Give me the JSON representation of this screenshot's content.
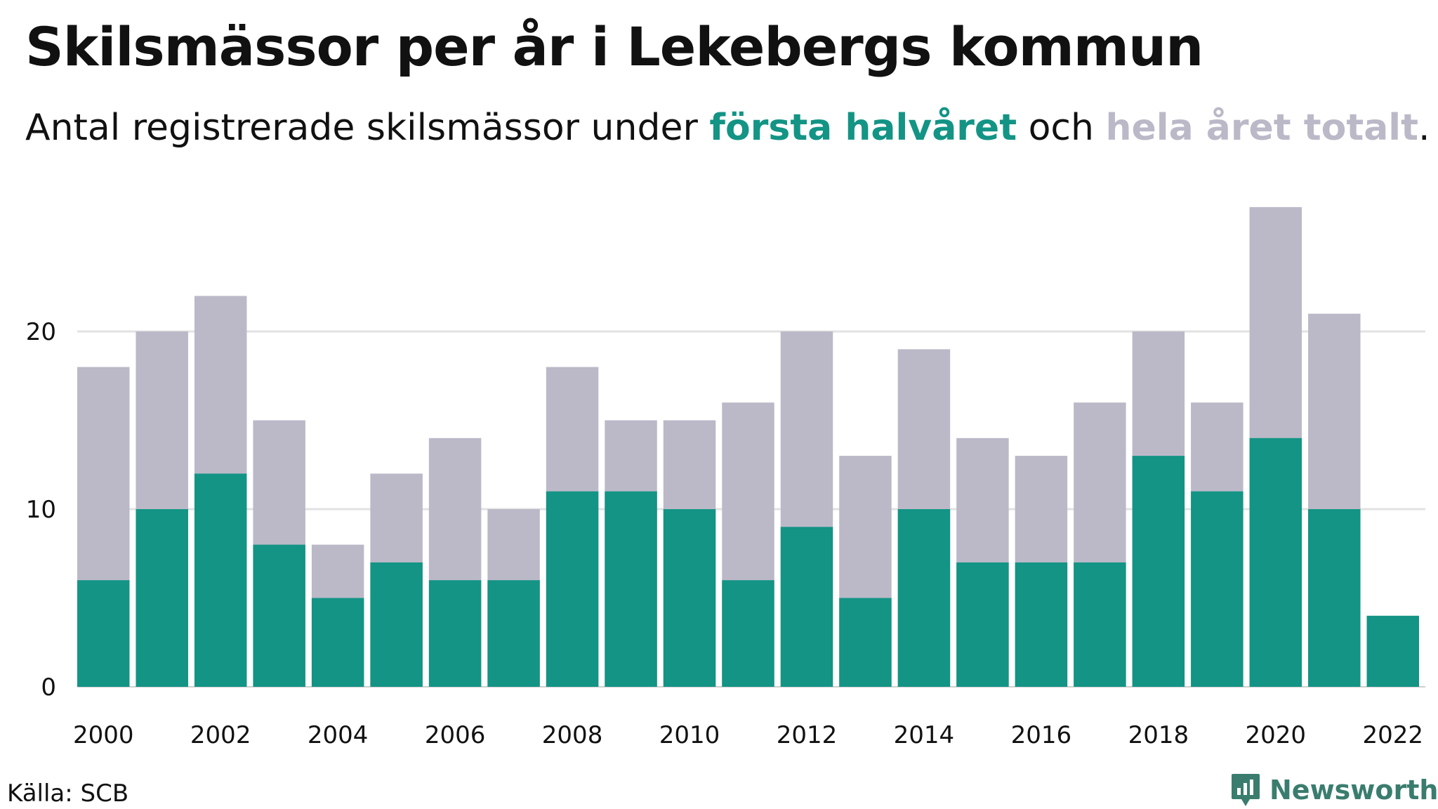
{
  "title": "Skilsmässor per år i Lekebergs kommun",
  "subtitle": {
    "part1": "Antal registrerade skilsmässor under ",
    "highlight_first": "första halvåret",
    "part2": " och ",
    "highlight_total": "hela året totalt",
    "part3": "."
  },
  "source": "Källa: SCB",
  "brand": "Newsworthy",
  "colors": {
    "first_half": "#139485",
    "full_year": "#bbb9c8",
    "grid": "#e2e2e2",
    "brand": "#3a7d6e"
  },
  "chart_data": {
    "type": "bar",
    "categories": [
      "2000",
      "2001",
      "2002",
      "2003",
      "2004",
      "2005",
      "2006",
      "2007",
      "2008",
      "2009",
      "2010",
      "2011",
      "2012",
      "2013",
      "2014",
      "2015",
      "2016",
      "2017",
      "2018",
      "2019",
      "2020",
      "2021",
      "2022"
    ],
    "series": [
      {
        "name": "hela året totalt",
        "values": [
          18,
          20,
          22,
          15,
          8,
          12,
          14,
          10,
          18,
          15,
          15,
          16,
          20,
          13,
          19,
          14,
          13,
          16,
          20,
          16,
          27,
          21,
          null
        ]
      },
      {
        "name": "första halvåret",
        "values": [
          6,
          10,
          12,
          8,
          5,
          7,
          6,
          6,
          11,
          11,
          10,
          6,
          9,
          5,
          10,
          7,
          7,
          7,
          13,
          11,
          14,
          10,
          4
        ]
      }
    ],
    "x_tick_labels": [
      "2000",
      "2002",
      "2004",
      "2006",
      "2008",
      "2010",
      "2012",
      "2014",
      "2016",
      "2018",
      "2020",
      "2022"
    ],
    "y_tick_labels": [
      "0",
      "10",
      "20"
    ],
    "ylim": [
      0,
      28
    ],
    "grid": true,
    "overlay": true
  }
}
